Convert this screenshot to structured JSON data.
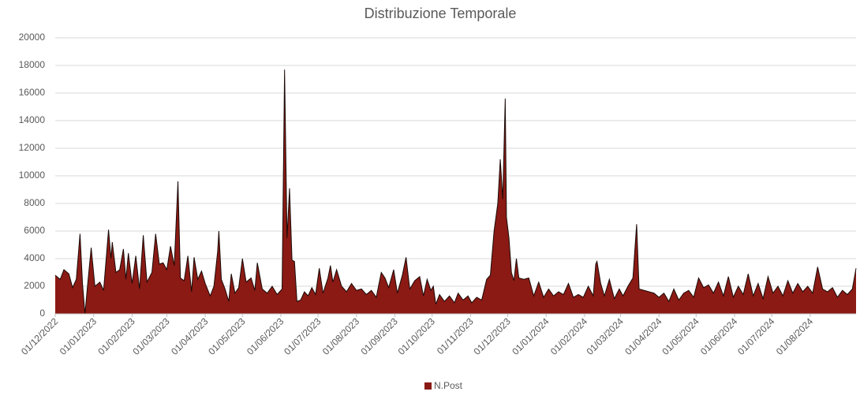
{
  "chart_data": {
    "type": "area",
    "title": "Distribuzione Temporale",
    "x": [
      "01/12/2022",
      "05/12/2022",
      "08/12/2022",
      "12/12/2022",
      "15/12/2022",
      "18/12/2022",
      "21/12/2022",
      "23/12/2022",
      "25/12/2022",
      "27/12/2022",
      "30/12/2022",
      "02/01/2023",
      "06/01/2023",
      "09/01/2023",
      "13/01/2023",
      "15/01/2023",
      "16/01/2023",
      "19/01/2023",
      "22/01/2023",
      "25/01/2023",
      "27/01/2023",
      "29/01/2023",
      "01/02/2023",
      "04/02/2023",
      "07/02/2023",
      "10/02/2023",
      "13/02/2023",
      "17/02/2023",
      "20/02/2023",
      "23/02/2023",
      "26/02/2023",
      "01/03/2023",
      "04/03/2023",
      "07/03/2023",
      "10/03/2023",
      "12/03/2023",
      "15/03/2023",
      "18/03/2023",
      "21/03/2023",
      "23/03/2023",
      "26/03/2023",
      "29/03/2023",
      "01/04/2023",
      "05/04/2023",
      "08/04/2023",
      "11/04/2023",
      "12/04/2023",
      "14/04/2023",
      "17/04/2023",
      "20/04/2023",
      "22/04/2023",
      "25/04/2023",
      "28/04/2023",
      "01/05/2023",
      "04/05/2023",
      "08/05/2023",
      "11/05/2023",
      "13/05/2023",
      "17/05/2023",
      "21/05/2023",
      "25/05/2023",
      "29/05/2023",
      "02/06/2023",
      "04/06/2023",
      "06/06/2023",
      "08/06/2023",
      "10/06/2023",
      "12/06/2023",
      "14/06/2023",
      "17/06/2023",
      "20/06/2023",
      "23/06/2023",
      "26/06/2023",
      "29/06/2023",
      "02/07/2023",
      "05/07/2023",
      "09/07/2023",
      "11/07/2023",
      "13/07/2023",
      "16/07/2023",
      "20/07/2023",
      "24/07/2023",
      "28/07/2023",
      "01/08/2023",
      "05/08/2023",
      "09/08/2023",
      "13/08/2023",
      "17/08/2023",
      "21/08/2023",
      "24/08/2023",
      "27/08/2023",
      "31/08/2023",
      "03/09/2023",
      "07/09/2023",
      "10/09/2023",
      "13/09/2023",
      "17/09/2023",
      "21/09/2023",
      "24/09/2023",
      "27/09/2023",
      "30/09/2023",
      "02/10/2023",
      "04/10/2023",
      "07/10/2023",
      "11/10/2023",
      "15/10/2023",
      "19/10/2023",
      "22/10/2023",
      "26/10/2023",
      "30/10/2023",
      "02/11/2023",
      "06/11/2023",
      "10/11/2023",
      "14/11/2023",
      "17/11/2023",
      "20/11/2023",
      "23/11/2023",
      "25/11/2023",
      "27/11/2023",
      "29/11/2023",
      "30/11/2023",
      "02/12/2023",
      "04/12/2023",
      "06/12/2023",
      "08/12/2023",
      "10/12/2023",
      "14/12/2023",
      "18/12/2023",
      "22/12/2023",
      "26/12/2023",
      "30/12/2023",
      "03/01/2024",
      "07/01/2024",
      "11/01/2024",
      "15/01/2024",
      "19/01/2024",
      "23/01/2024",
      "27/01/2024",
      "31/01/2024",
      "04/02/2024",
      "08/02/2024",
      "10/02/2024",
      "11/02/2024",
      "14/02/2024",
      "17/02/2024",
      "21/02/2024",
      "25/02/2024",
      "29/02/2024",
      "03/03/2024",
      "07/03/2024",
      "11/03/2024",
      "14/03/2024",
      "16/03/2024",
      "20/03/2024",
      "24/03/2024",
      "28/03/2024",
      "01/04/2024",
      "05/04/2024",
      "09/04/2024",
      "13/04/2024",
      "17/04/2024",
      "21/04/2024",
      "25/04/2024",
      "29/04/2024",
      "03/05/2024",
      "07/05/2024",
      "11/05/2024",
      "15/05/2024",
      "19/05/2024",
      "23/05/2024",
      "27/05/2024",
      "31/05/2024",
      "04/06/2024",
      "08/06/2024",
      "12/06/2024",
      "16/06/2024",
      "20/06/2024",
      "24/06/2024",
      "28/06/2024",
      "02/07/2024",
      "06/07/2024",
      "10/07/2024",
      "14/07/2024",
      "18/07/2024",
      "22/07/2024",
      "26/07/2024",
      "30/07/2024",
      "03/08/2024",
      "07/08/2024",
      "11/08/2024",
      "15/08/2024",
      "19/08/2024",
      "23/08/2024",
      "27/08/2024",
      "31/08/2024",
      "04/09/2024",
      "07/09/2024"
    ],
    "series": [
      {
        "name": "N.Post",
        "color": "#8b1a14",
        "values": [
          2800,
          2500,
          3200,
          2900,
          1900,
          2500,
          5800,
          2200,
          0,
          2000,
          4800,
          2000,
          2300,
          1700,
          6100,
          4000,
          5200,
          3000,
          3200,
          4700,
          2500,
          4400,
          2200,
          4200,
          1800,
          5700,
          2300,
          3000,
          5800,
          3600,
          3700,
          3200,
          4900,
          3500,
          9600,
          2600,
          2400,
          4200,
          1600,
          4100,
          2500,
          3100,
          2200,
          1300,
          2000,
          4500,
          6000,
          2500,
          1800,
          900,
          2900,
          1500,
          1900,
          4000,
          2300,
          2600,
          1700,
          3700,
          1800,
          1500,
          2000,
          1400,
          1800,
          17700,
          5500,
          9100,
          3900,
          3800,
          900,
          1000,
          1600,
          1300,
          1900,
          1400,
          3300,
          1500,
          2600,
          3500,
          2300,
          3200,
          2000,
          1600,
          2200,
          1700,
          1800,
          1400,
          1700,
          1200,
          3000,
          2600,
          1900,
          3200,
          1500,
          2800,
          4100,
          1800,
          2400,
          2700,
          1300,
          2500,
          1700,
          2000,
          700,
          1400,
          900,
          1300,
          800,
          1500,
          1000,
          1300,
          800,
          1200,
          1000,
          2500,
          2800,
          6000,
          8000,
          11200,
          8300,
          15600,
          7000,
          5500,
          3000,
          2400,
          4000,
          2600,
          2500,
          2600,
          1300,
          2300,
          1200,
          1800,
          1300,
          1600,
          1400,
          2200,
          1200,
          1400,
          1200,
          2000,
          1300,
          3600,
          3800,
          2200,
          1300,
          2500,
          1100,
          1800,
          1300,
          2000,
          2600,
          6500,
          1800,
          1700,
          1600,
          1500,
          1200,
          1500,
          900,
          1800,
          1000,
          1500,
          1700,
          1200,
          2600,
          1900,
          2100,
          1500,
          2300,
          1300,
          2700,
          1200,
          2000,
          1400,
          2900,
          1300,
          2200,
          1100,
          2700,
          1500,
          2000,
          1300,
          2400,
          1500,
          2200,
          1600,
          2000,
          1500,
          3400,
          1800,
          1600,
          1900,
          1200,
          1700,
          1400,
          1800,
          3300
        ]
      }
    ],
    "xlim": [
      "01/12/2022",
      "07/09/2024"
    ],
    "xticks": [
      "01/12/2022",
      "01/01/2023",
      "01/02/2023",
      "01/03/2023",
      "01/04/2023",
      "01/05/2023",
      "01/06/2023",
      "01/07/2023",
      "01/08/2023",
      "01/09/2023",
      "01/10/2023",
      "01/11/2023",
      "01/12/2023",
      "01/01/2024",
      "01/02/2024",
      "01/03/2024",
      "01/04/2024",
      "01/05/2024",
      "01/06/2024",
      "01/07/2024",
      "01/08/2024"
    ],
    "ylim": [
      0,
      20000
    ],
    "yticks": [
      0,
      2000,
      4000,
      6000,
      8000,
      10000,
      12000,
      14000,
      16000,
      18000,
      20000
    ],
    "grid": true,
    "legend": "bottom"
  }
}
